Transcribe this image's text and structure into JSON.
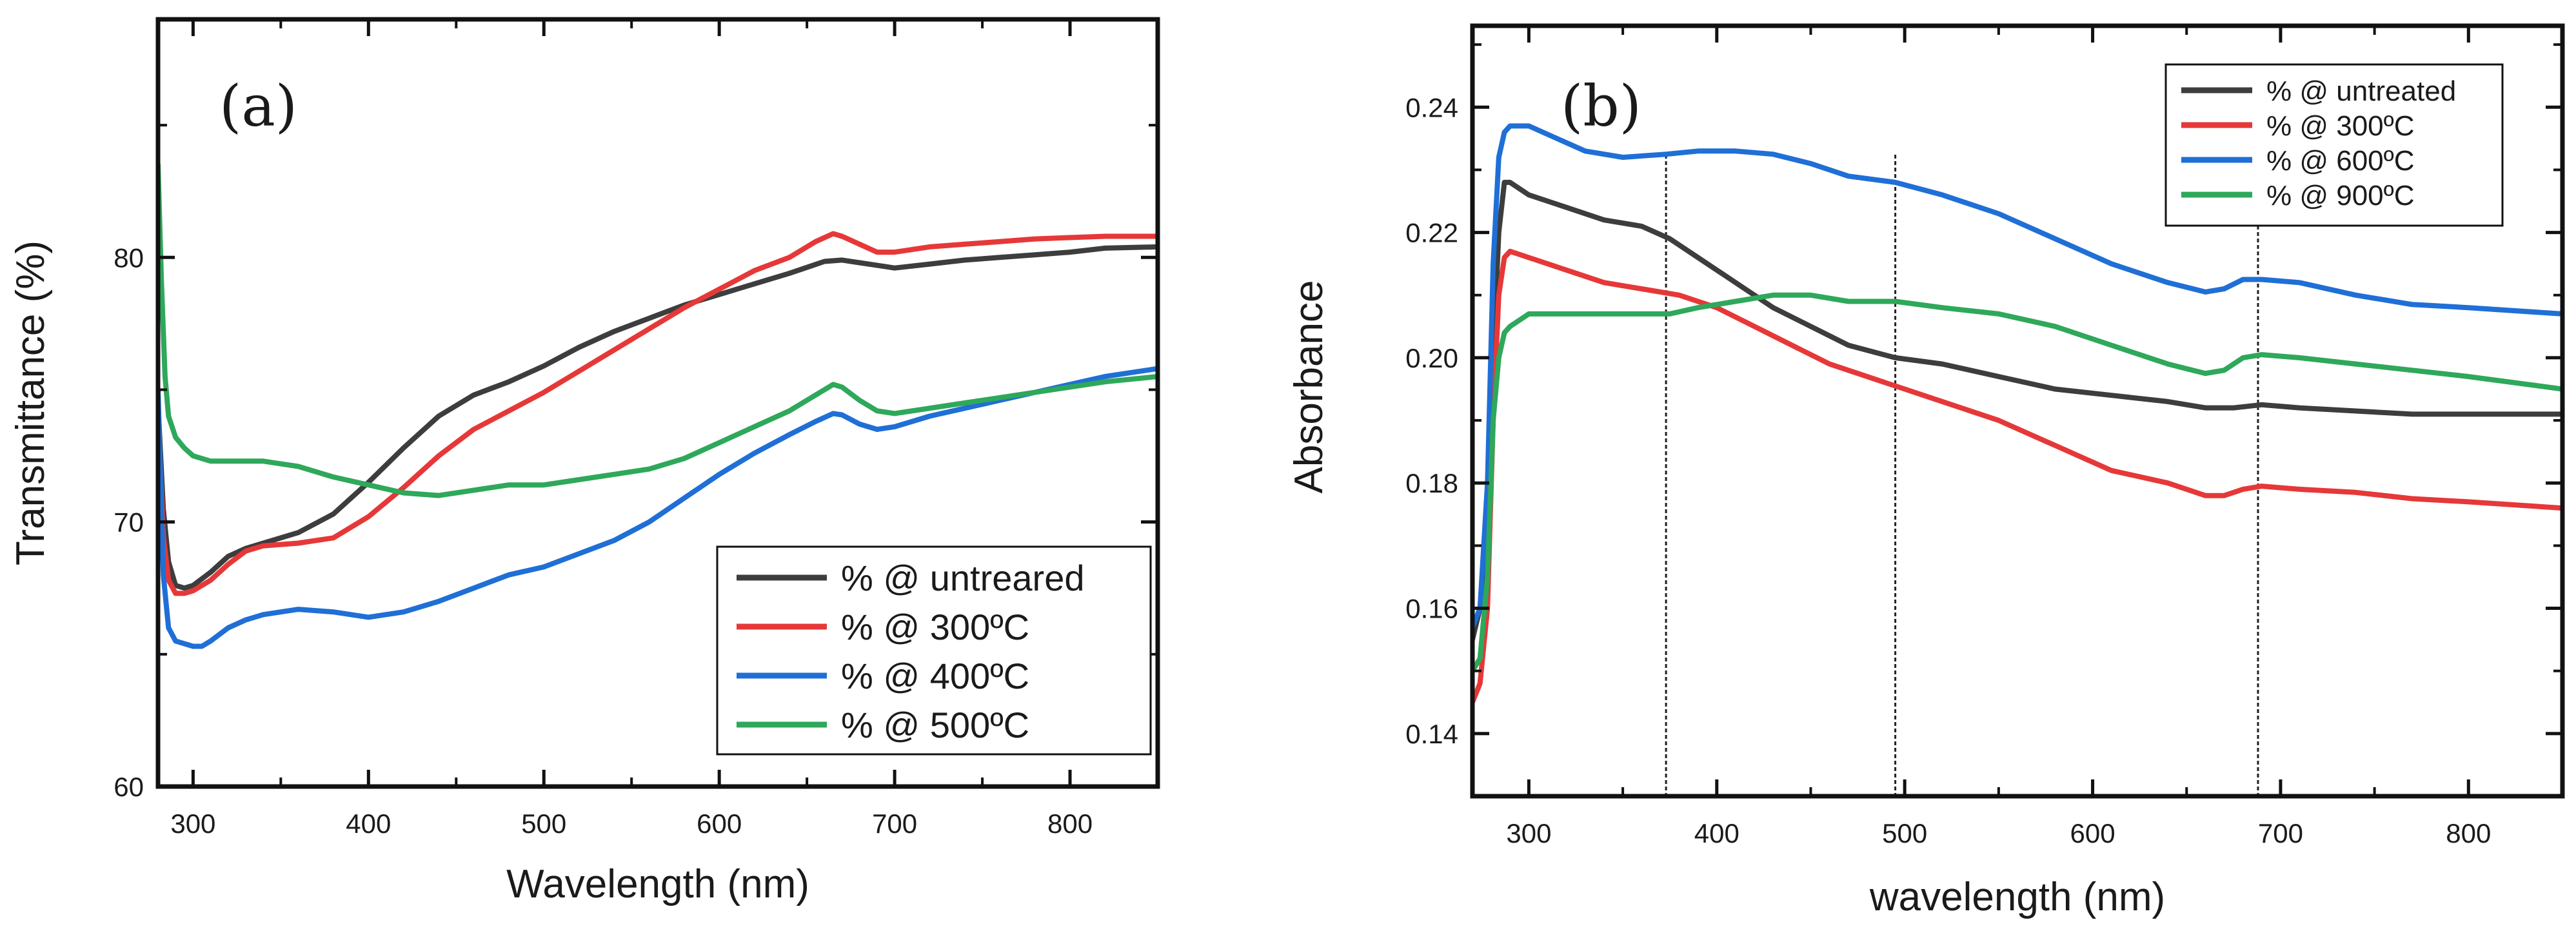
{
  "chart_data": [
    {
      "type": "line",
      "panel_label": "(a)",
      "xlabel": "Wavelength (nm)",
      "ylabel": "Transmittance (%)",
      "xlim": [
        280,
        850
      ],
      "ylim": [
        60,
        89
      ],
      "x_ticks": [
        300,
        400,
        500,
        600,
        700,
        800
      ],
      "y_ticks": [
        60,
        70,
        80
      ],
      "x_tick_labels": [
        "300",
        "400",
        "500",
        "600",
        "700",
        "800"
      ],
      "y_tick_labels": [
        "60",
        "70",
        "80"
      ],
      "legend_position": "bottom-right",
      "grid": false,
      "series": [
        {
          "name": "% @ untreared",
          "color": "#3d3d3d",
          "x": [
            280,
            283,
            286,
            290,
            295,
            300,
            310,
            320,
            330,
            340,
            360,
            380,
            400,
            420,
            440,
            460,
            480,
            500,
            520,
            540,
            560,
            580,
            600,
            620,
            640,
            660,
            670,
            680,
            690,
            700,
            720,
            740,
            760,
            780,
            800,
            820,
            850
          ],
          "y": [
            74.5,
            70.5,
            68.5,
            67.6,
            67.5,
            67.6,
            68.1,
            68.7,
            69.0,
            69.2,
            69.6,
            70.3,
            71.5,
            72.8,
            74.0,
            74.8,
            75.3,
            75.9,
            76.6,
            77.2,
            77.7,
            78.2,
            78.6,
            79.0,
            79.4,
            79.85,
            79.9,
            79.8,
            79.7,
            79.6,
            79.75,
            79.9,
            80.0,
            80.1,
            80.2,
            80.35,
            80.4
          ]
        },
        {
          "name": "% @ 300ºC",
          "color": "#e63838",
          "x": [
            280,
            283,
            286,
            290,
            295,
            300,
            310,
            320,
            330,
            340,
            360,
            380,
            400,
            420,
            440,
            460,
            480,
            500,
            520,
            540,
            560,
            580,
            600,
            620,
            640,
            655,
            665,
            670,
            680,
            690,
            700,
            720,
            740,
            760,
            780,
            800,
            820,
            850
          ],
          "y": [
            74.0,
            69.5,
            67.8,
            67.3,
            67.3,
            67.4,
            67.8,
            68.4,
            68.9,
            69.1,
            69.2,
            69.4,
            70.2,
            71.3,
            72.5,
            73.5,
            74.2,
            74.9,
            75.7,
            76.5,
            77.3,
            78.1,
            78.8,
            79.5,
            80.0,
            80.6,
            80.9,
            80.8,
            80.5,
            80.2,
            80.2,
            80.4,
            80.5,
            80.6,
            80.7,
            80.75,
            80.8,
            80.8
          ]
        },
        {
          "name": "% @ 400ºC",
          "color": "#1f6fd6",
          "x": [
            280,
            283,
            286,
            290,
            295,
            300,
            305,
            310,
            320,
            330,
            340,
            350,
            360,
            380,
            400,
            420,
            440,
            460,
            480,
            500,
            520,
            540,
            560,
            580,
            600,
            620,
            640,
            655,
            665,
            670,
            680,
            690,
            700,
            720,
            740,
            760,
            780,
            800,
            820,
            850
          ],
          "y": [
            75.0,
            68.0,
            66.0,
            65.5,
            65.4,
            65.3,
            65.3,
            65.5,
            66.0,
            66.3,
            66.5,
            66.6,
            66.7,
            66.6,
            66.4,
            66.6,
            67.0,
            67.5,
            68.0,
            68.3,
            68.8,
            69.3,
            70.0,
            70.9,
            71.8,
            72.6,
            73.3,
            73.8,
            74.1,
            74.05,
            73.7,
            73.5,
            73.6,
            74.0,
            74.3,
            74.6,
            74.9,
            75.2,
            75.5,
            75.8
          ]
        },
        {
          "name": "% @ 500ºC",
          "color": "#2ea85a",
          "x": [
            280,
            282,
            284,
            286,
            290,
            295,
            300,
            310,
            320,
            330,
            340,
            350,
            360,
            370,
            380,
            400,
            420,
            440,
            460,
            480,
            500,
            520,
            540,
            560,
            580,
            600,
            620,
            640,
            655,
            665,
            670,
            680,
            690,
            700,
            720,
            740,
            760,
            780,
            800,
            820,
            850
          ],
          "y": [
            83.5,
            79.0,
            75.5,
            74.0,
            73.2,
            72.8,
            72.5,
            72.3,
            72.3,
            72.3,
            72.3,
            72.2,
            72.1,
            71.9,
            71.7,
            71.4,
            71.1,
            71.0,
            71.2,
            71.4,
            71.4,
            71.6,
            71.8,
            72.0,
            72.4,
            73.0,
            73.6,
            74.2,
            74.8,
            75.2,
            75.1,
            74.6,
            74.2,
            74.1,
            74.3,
            74.5,
            74.7,
            74.9,
            75.1,
            75.3,
            75.5
          ]
        }
      ]
    },
    {
      "type": "line",
      "panel_label": "(b)",
      "xlabel": "wavelength (nm)",
      "ylabel": "Absorbance",
      "xlim": [
        270,
        850
      ],
      "ylim": [
        0.13,
        0.253
      ],
      "x_ticks": [
        300,
        400,
        500,
        600,
        700,
        800
      ],
      "y_ticks": [
        0.14,
        0.16,
        0.18,
        0.2,
        0.22,
        0.24
      ],
      "x_tick_labels": [
        "300",
        "400",
        "500",
        "600",
        "700",
        "800"
      ],
      "y_tick_labels": [
        "0.14",
        "0.16",
        "0.18",
        "0.20",
        "0.22",
        "0.24"
      ],
      "legend_position": "top-right",
      "grid": false,
      "vertical_reference_lines_x": [
        373,
        495,
        688
      ],
      "series": [
        {
          "name": "% @ untreated",
          "color": "#3d3d3d",
          "x": [
            270,
            274,
            278,
            281,
            284,
            287,
            290,
            300,
            320,
            340,
            360,
            375,
            390,
            410,
            430,
            450,
            470,
            495,
            520,
            550,
            580,
            610,
            640,
            660,
            675,
            690,
            710,
            740,
            770,
            800,
            850
          ],
          "y": [
            0.155,
            0.16,
            0.175,
            0.2,
            0.22,
            0.228,
            0.228,
            0.226,
            0.224,
            0.222,
            0.221,
            0.219,
            0.216,
            0.212,
            0.208,
            0.205,
            0.202,
            0.2,
            0.199,
            0.197,
            0.195,
            0.194,
            0.193,
            0.192,
            0.192,
            0.1925,
            0.192,
            0.1915,
            0.191,
            0.191,
            0.191
          ]
        },
        {
          "name": "% @ 300ºC",
          "color": "#e63838",
          "x": [
            270,
            274,
            278,
            281,
            284,
            287,
            290,
            300,
            320,
            340,
            360,
            380,
            400,
            420,
            440,
            460,
            480,
            500,
            520,
            550,
            580,
            610,
            640,
            660,
            670,
            680,
            690,
            710,
            740,
            770,
            800,
            850
          ],
          "y": [
            0.145,
            0.148,
            0.16,
            0.19,
            0.21,
            0.216,
            0.217,
            0.216,
            0.214,
            0.212,
            0.211,
            0.21,
            0.208,
            0.205,
            0.202,
            0.199,
            0.197,
            0.195,
            0.193,
            0.19,
            0.186,
            0.182,
            0.18,
            0.178,
            0.178,
            0.179,
            0.1795,
            0.179,
            0.1785,
            0.1775,
            0.177,
            0.176
          ]
        },
        {
          "name": "% @ 600ºC",
          "color": "#1f6fd6",
          "x": [
            270,
            274,
            278,
            281,
            284,
            287,
            290,
            300,
            315,
            330,
            350,
            373,
            390,
            410,
            430,
            450,
            470,
            495,
            520,
            550,
            580,
            610,
            640,
            660,
            670,
            680,
            690,
            710,
            740,
            770,
            800,
            850
          ],
          "y": [
            0.157,
            0.16,
            0.18,
            0.215,
            0.232,
            0.236,
            0.237,
            0.237,
            0.235,
            0.233,
            0.232,
            0.2325,
            0.233,
            0.233,
            0.2325,
            0.231,
            0.229,
            0.228,
            0.226,
            0.223,
            0.219,
            0.215,
            0.212,
            0.2105,
            0.211,
            0.2125,
            0.2125,
            0.212,
            0.21,
            0.2085,
            0.208,
            0.207
          ]
        },
        {
          "name": "% @ 900ºC",
          "color": "#2ea85a",
          "x": [
            270,
            274,
            278,
            281,
            284,
            287,
            290,
            300,
            320,
            340,
            360,
            375,
            390,
            410,
            430,
            450,
            470,
            495,
            520,
            550,
            580,
            610,
            640,
            660,
            670,
            680,
            690,
            710,
            740,
            770,
            800,
            850
          ],
          "y": [
            0.15,
            0.152,
            0.165,
            0.19,
            0.2,
            0.204,
            0.205,
            0.207,
            0.207,
            0.207,
            0.207,
            0.207,
            0.208,
            0.209,
            0.21,
            0.21,
            0.209,
            0.209,
            0.208,
            0.207,
            0.205,
            0.202,
            0.199,
            0.1975,
            0.198,
            0.2,
            0.2005,
            0.2,
            0.199,
            0.198,
            0.197,
            0.195
          ]
        }
      ]
    }
  ]
}
